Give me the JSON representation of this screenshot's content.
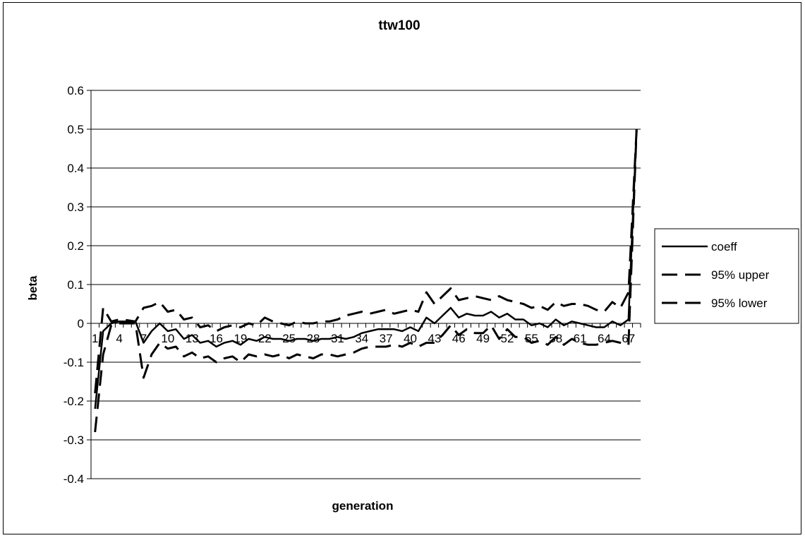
{
  "chart_data": {
    "type": "line",
    "title": "ttw100",
    "xlabel": "generation",
    "ylabel": "beta",
    "ylim": [
      -0.4,
      0.6
    ],
    "yticks": [
      "0.6",
      "0.5",
      "0.4",
      "0.3",
      "0.2",
      "0.1",
      "0",
      "-0.1",
      "-0.2",
      "-0.3",
      "-0.4"
    ],
    "x_tick_labels": [
      "1",
      "4",
      "7",
      "10",
      "13",
      "16",
      "19",
      "22",
      "25",
      "28",
      "31",
      "34",
      "37",
      "40",
      "43",
      "46",
      "49",
      "52",
      "55",
      "58",
      "61",
      "64",
      "67"
    ],
    "x": [
      1,
      2,
      3,
      4,
      5,
      6,
      7,
      8,
      9,
      10,
      11,
      12,
      13,
      14,
      15,
      16,
      17,
      18,
      19,
      20,
      21,
      22,
      23,
      24,
      25,
      26,
      27,
      28,
      29,
      30,
      31,
      32,
      33,
      34,
      35,
      36,
      37,
      38,
      39,
      40,
      41,
      42,
      43,
      44,
      45,
      46,
      47,
      48,
      49,
      50,
      51,
      52,
      53,
      54,
      55,
      56,
      57,
      58,
      59,
      60,
      61,
      62,
      63,
      64,
      65,
      66,
      67,
      68
    ],
    "grid": "horizontal",
    "legend_position": "right",
    "series": [
      {
        "name": "coeff",
        "dash": "solid",
        "values": [
          -0.22,
          -0.02,
          0.0,
          0.005,
          0.005,
          0.005,
          -0.05,
          -0.02,
          0.0,
          -0.02,
          -0.015,
          -0.04,
          -0.03,
          -0.05,
          -0.045,
          -0.06,
          -0.05,
          -0.045,
          -0.055,
          -0.04,
          -0.045,
          -0.035,
          -0.04,
          -0.04,
          -0.045,
          -0.04,
          -0.04,
          -0.045,
          -0.04,
          -0.04,
          -0.035,
          -0.04,
          -0.035,
          -0.025,
          -0.02,
          -0.015,
          -0.015,
          -0.015,
          -0.02,
          -0.01,
          -0.02,
          0.015,
          0.0,
          0.02,
          0.04,
          0.015,
          0.025,
          0.02,
          0.02,
          0.03,
          0.015,
          0.025,
          0.01,
          0.01,
          -0.005,
          0.0,
          -0.01,
          0.01,
          -0.005,
          0.005,
          0.0,
          -0.005,
          -0.01,
          -0.01,
          0.005,
          -0.005,
          0.01,
          0.5
        ]
      },
      {
        "name": "95% upper",
        "dash": "dashed",
        "values": [
          -0.18,
          0.04,
          0.005,
          0.01,
          0.008,
          0.005,
          0.04,
          0.045,
          0.055,
          0.03,
          0.035,
          0.01,
          0.015,
          -0.01,
          -0.005,
          -0.02,
          -0.01,
          -0.005,
          -0.01,
          0.0,
          -0.005,
          0.015,
          0.005,
          0.0,
          -0.005,
          0.005,
          0.0,
          0.0,
          0.005,
          0.005,
          0.01,
          0.02,
          0.025,
          0.03,
          0.025,
          0.03,
          0.035,
          0.025,
          0.03,
          0.035,
          0.03,
          0.08,
          0.05,
          0.07,
          0.09,
          0.06,
          0.065,
          0.07,
          0.065,
          0.06,
          0.07,
          0.06,
          0.055,
          0.05,
          0.04,
          0.045,
          0.035,
          0.055,
          0.045,
          0.05,
          0.05,
          0.045,
          0.035,
          0.03,
          0.055,
          0.04,
          0.08,
          0.5
        ]
      },
      {
        "name": "95% lower",
        "dash": "dashed",
        "values": [
          -0.28,
          -0.08,
          -0.005,
          0.0,
          0.0,
          0.0,
          -0.14,
          -0.08,
          -0.05,
          -0.065,
          -0.06,
          -0.085,
          -0.075,
          -0.09,
          -0.085,
          -0.1,
          -0.09,
          -0.085,
          -0.1,
          -0.08,
          -0.085,
          -0.08,
          -0.085,
          -0.08,
          -0.09,
          -0.08,
          -0.085,
          -0.09,
          -0.08,
          -0.08,
          -0.085,
          -0.08,
          -0.075,
          -0.065,
          -0.06,
          -0.06,
          -0.06,
          -0.055,
          -0.06,
          -0.05,
          -0.06,
          -0.05,
          -0.05,
          -0.03,
          -0.005,
          -0.03,
          -0.015,
          -0.025,
          -0.025,
          -0.005,
          -0.04,
          -0.015,
          -0.035,
          -0.035,
          -0.05,
          -0.045,
          -0.055,
          -0.035,
          -0.055,
          -0.04,
          -0.05,
          -0.055,
          -0.055,
          -0.05,
          -0.045,
          -0.05,
          -0.055,
          0.5
        ]
      }
    ]
  }
}
